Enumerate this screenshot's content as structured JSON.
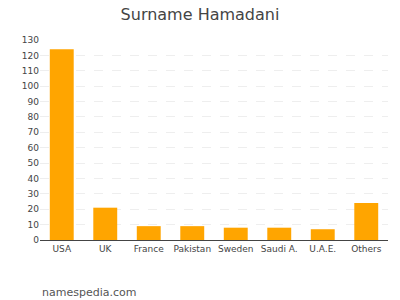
{
  "chart_data": {
    "type": "bar",
    "title": "Surname Hamadani",
    "categories": [
      "USA",
      "UK",
      "France",
      "Pakistan",
      "Sweden",
      "Saudi A.",
      "U.A.E.",
      "Others"
    ],
    "values": [
      124,
      21,
      9,
      9,
      8,
      8,
      7,
      24
    ],
    "color": "#FFA500",
    "ylim": [
      0,
      130
    ],
    "yticks": [
      0,
      10,
      20,
      30,
      40,
      50,
      60,
      70,
      80,
      90,
      100,
      110,
      120,
      130
    ],
    "grid": true,
    "annotations": [
      "namespedia.com"
    ]
  }
}
